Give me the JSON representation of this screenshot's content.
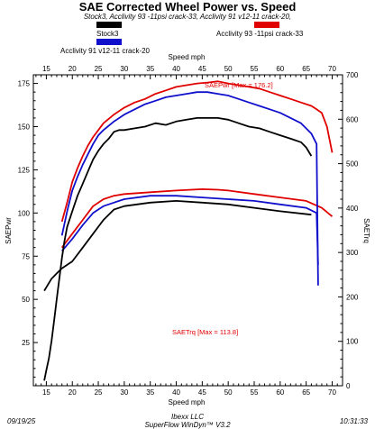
{
  "header": {
    "title": "SAE Corrected Wheel Power vs. Speed",
    "subtitle": "Stock3, Acclivity 93 -11psi crack-33, Acclivity 91 v12-11 crack-20,"
  },
  "legend": [
    {
      "name": "Stock3",
      "color": "#000000"
    },
    {
      "name": "Acclivity 93 -11psi crack-33",
      "color": "#e00000"
    },
    {
      "name": "Acclivity 91 v12-11 crack-20",
      "color": "#1010cc"
    }
  ],
  "footer": {
    "date": "09/19/25",
    "company": "Ibexx LLC",
    "software": "SuperFlow WinDyn™ V3.2",
    "time": "10:31:33"
  },
  "chart_data": {
    "type": "line",
    "xlabel": "Speed mph",
    "ylabel_left": "SAEPwr",
    "ylabel_right": "SAETrq",
    "xlim": [
      12.5,
      72
    ],
    "ylim_left": [
      0,
      180
    ],
    "ylim_right": [
      0,
      700
    ],
    "x_ticks": [
      "15",
      "20",
      "25",
      "30",
      "35",
      "40",
      "45",
      "50",
      "55",
      "60",
      "65",
      "70"
    ],
    "y_ticks_left": [
      "25",
      "50",
      "75",
      "100",
      "125",
      "150",
      "175"
    ],
    "y_ticks_right": [
      "0",
      "100",
      "200",
      "300",
      "400",
      "500",
      "600",
      "700"
    ],
    "grid": false,
    "annotations": {
      "pwr_max": "SAEPwr [Max = 176.2]",
      "trq_max": "SAETrq [Max = 113.8]"
    },
    "power_series": [
      {
        "name": "Stock3",
        "color": "#000000",
        "x": [
          14.6,
          15,
          15.5,
          16,
          16.5,
          17,
          17.5,
          18,
          18.5,
          19,
          20,
          21,
          22,
          23,
          24,
          25,
          26,
          27,
          28,
          29,
          30,
          32,
          34,
          36,
          38,
          40,
          42,
          44,
          46,
          48,
          50,
          52,
          54,
          56,
          58,
          60,
          62,
          64,
          65,
          66
        ],
        "y": [
          3,
          9,
          16,
          26,
          38,
          50,
          62,
          74,
          84,
          92,
          101,
          110,
          117,
          124,
          131,
          136,
          140,
          143,
          147,
          148,
          148,
          149,
          150,
          152,
          151,
          153,
          154,
          155,
          155,
          155,
          154,
          152,
          150,
          149,
          147,
          145,
          143,
          141,
          138,
          133
        ]
      },
      {
        "name": "Acclivity 93 -11psi crack-33",
        "color": "#e00000",
        "x": [
          18,
          19,
          20,
          21,
          22,
          23,
          24,
          25,
          26,
          28,
          30,
          32,
          34,
          36,
          38,
          40,
          42,
          44,
          46,
          48,
          50,
          52,
          54,
          56,
          58,
          60,
          62,
          64,
          66,
          67,
          68,
          69,
          70
        ],
        "y": [
          95,
          106,
          118,
          126,
          133,
          139,
          144,
          148,
          152,
          157,
          161,
          164,
          166,
          169,
          171,
          173,
          174,
          175,
          175.5,
          176.2,
          175,
          174,
          173,
          172,
          170,
          168,
          166,
          164,
          162,
          160,
          158,
          150,
          135
        ]
      },
      {
        "name": "Acclivity 91 v12-11 crack-20",
        "color": "#1010cc",
        "x": [
          18,
          19,
          20,
          21,
          22,
          23,
          24,
          25,
          26,
          28,
          30,
          32,
          34,
          36,
          38,
          40,
          42,
          44,
          46,
          48,
          50,
          52,
          54,
          56,
          58,
          60,
          62,
          64,
          65,
          66,
          67,
          67.3
        ],
        "y": [
          87,
          101,
          113,
          121,
          128,
          134,
          140,
          145,
          148,
          153,
          157,
          160,
          163,
          165,
          167,
          168,
          169,
          170,
          170,
          169,
          168,
          166,
          164,
          162,
          160,
          158,
          155,
          152,
          149,
          146,
          140,
          58
        ]
      }
    ],
    "torque_series": [
      {
        "name": "Stock3",
        "color": "#000000",
        "x": [
          14.6,
          15,
          16,
          17,
          18,
          20,
          22,
          24,
          26,
          28,
          30,
          35,
          40,
          45,
          50,
          55,
          60,
          66
        ],
        "y": [
          55,
          57,
          62,
          65,
          68,
          72,
          80,
          88,
          96,
          102,
          104,
          106,
          107,
          106,
          105,
          103,
          101,
          99
        ]
      },
      {
        "name": "Acclivity 93 -11psi crack-33",
        "color": "#e00000",
        "x": [
          18,
          20,
          22,
          24,
          26,
          28,
          30,
          35,
          40,
          45,
          48,
          50,
          55,
          60,
          65,
          68,
          70
        ],
        "y": [
          80,
          88,
          96,
          104,
          108,
          110,
          111,
          112,
          113,
          113.8,
          113.5,
          113,
          111,
          109,
          107,
          103,
          98
        ]
      },
      {
        "name": "Acclivity 91 v12-11 crack-20",
        "color": "#1010cc",
        "x": [
          18,
          20,
          22,
          24,
          26,
          28,
          30,
          35,
          40,
          45,
          50,
          55,
          60,
          65,
          67,
          67.3
        ],
        "y": [
          78,
          85,
          93,
          100,
          104,
          106,
          108,
          110,
          110,
          109,
          108,
          107,
          105,
          103,
          100,
          70
        ]
      }
    ]
  }
}
